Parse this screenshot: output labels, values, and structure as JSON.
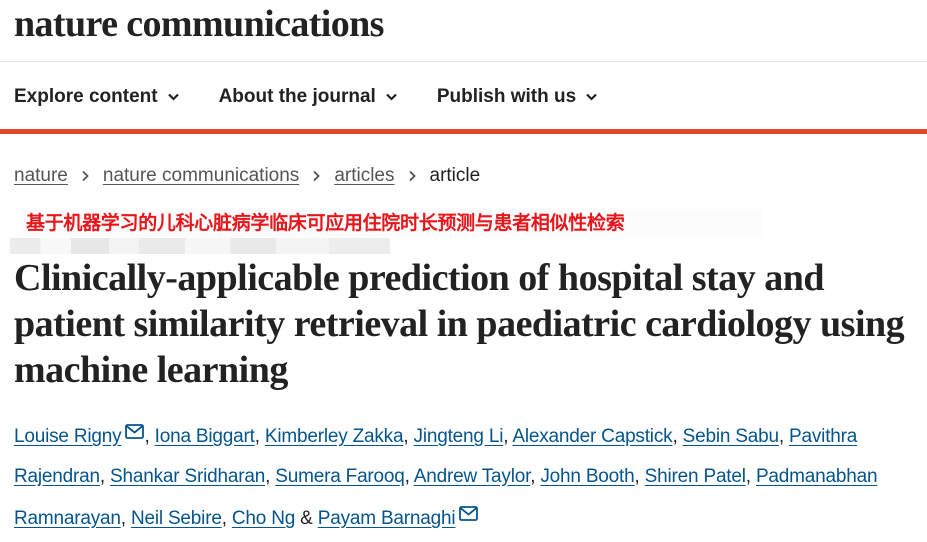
{
  "site": {
    "brand": "nature communications"
  },
  "nav": [
    {
      "label": "Explore content"
    },
    {
      "label": "About the journal"
    },
    {
      "label": "Publish with us"
    }
  ],
  "breadcrumb": {
    "items": [
      "nature",
      "nature communications",
      "articles"
    ],
    "current": "article"
  },
  "overlay": {
    "caption": "基于机器学习的儿科心脏病学临床可应用住院时长预测与患者相似性检索"
  },
  "article": {
    "title": "Clinically-applicable prediction of hospital stay and patient similarity retrieval in paediatric cardiology using machine learning",
    "authors": [
      "Louise Rigny",
      "Iona Biggart",
      "Kimberley Zakka",
      "Jingteng Li",
      "Alexander Capstick",
      "Sebin Sabu",
      "Pavithra Rajendran",
      "Shankar Sridharan",
      "Sumera Farooq",
      "Andrew Taylor",
      "John Booth",
      "Shiren Patel",
      "Padmanabhan Ramnarayan",
      "Neil Sebire",
      "Cho Ng",
      "Payam Barnaghi"
    ],
    "author_separator": ", ",
    "last_separator": " & ",
    "corresponding_icon": "mail-icon"
  },
  "colors": {
    "accent_red": "#e0462b",
    "link_blue": "#05558c",
    "overlay_red": "#e8161b",
    "text": "#222222"
  }
}
